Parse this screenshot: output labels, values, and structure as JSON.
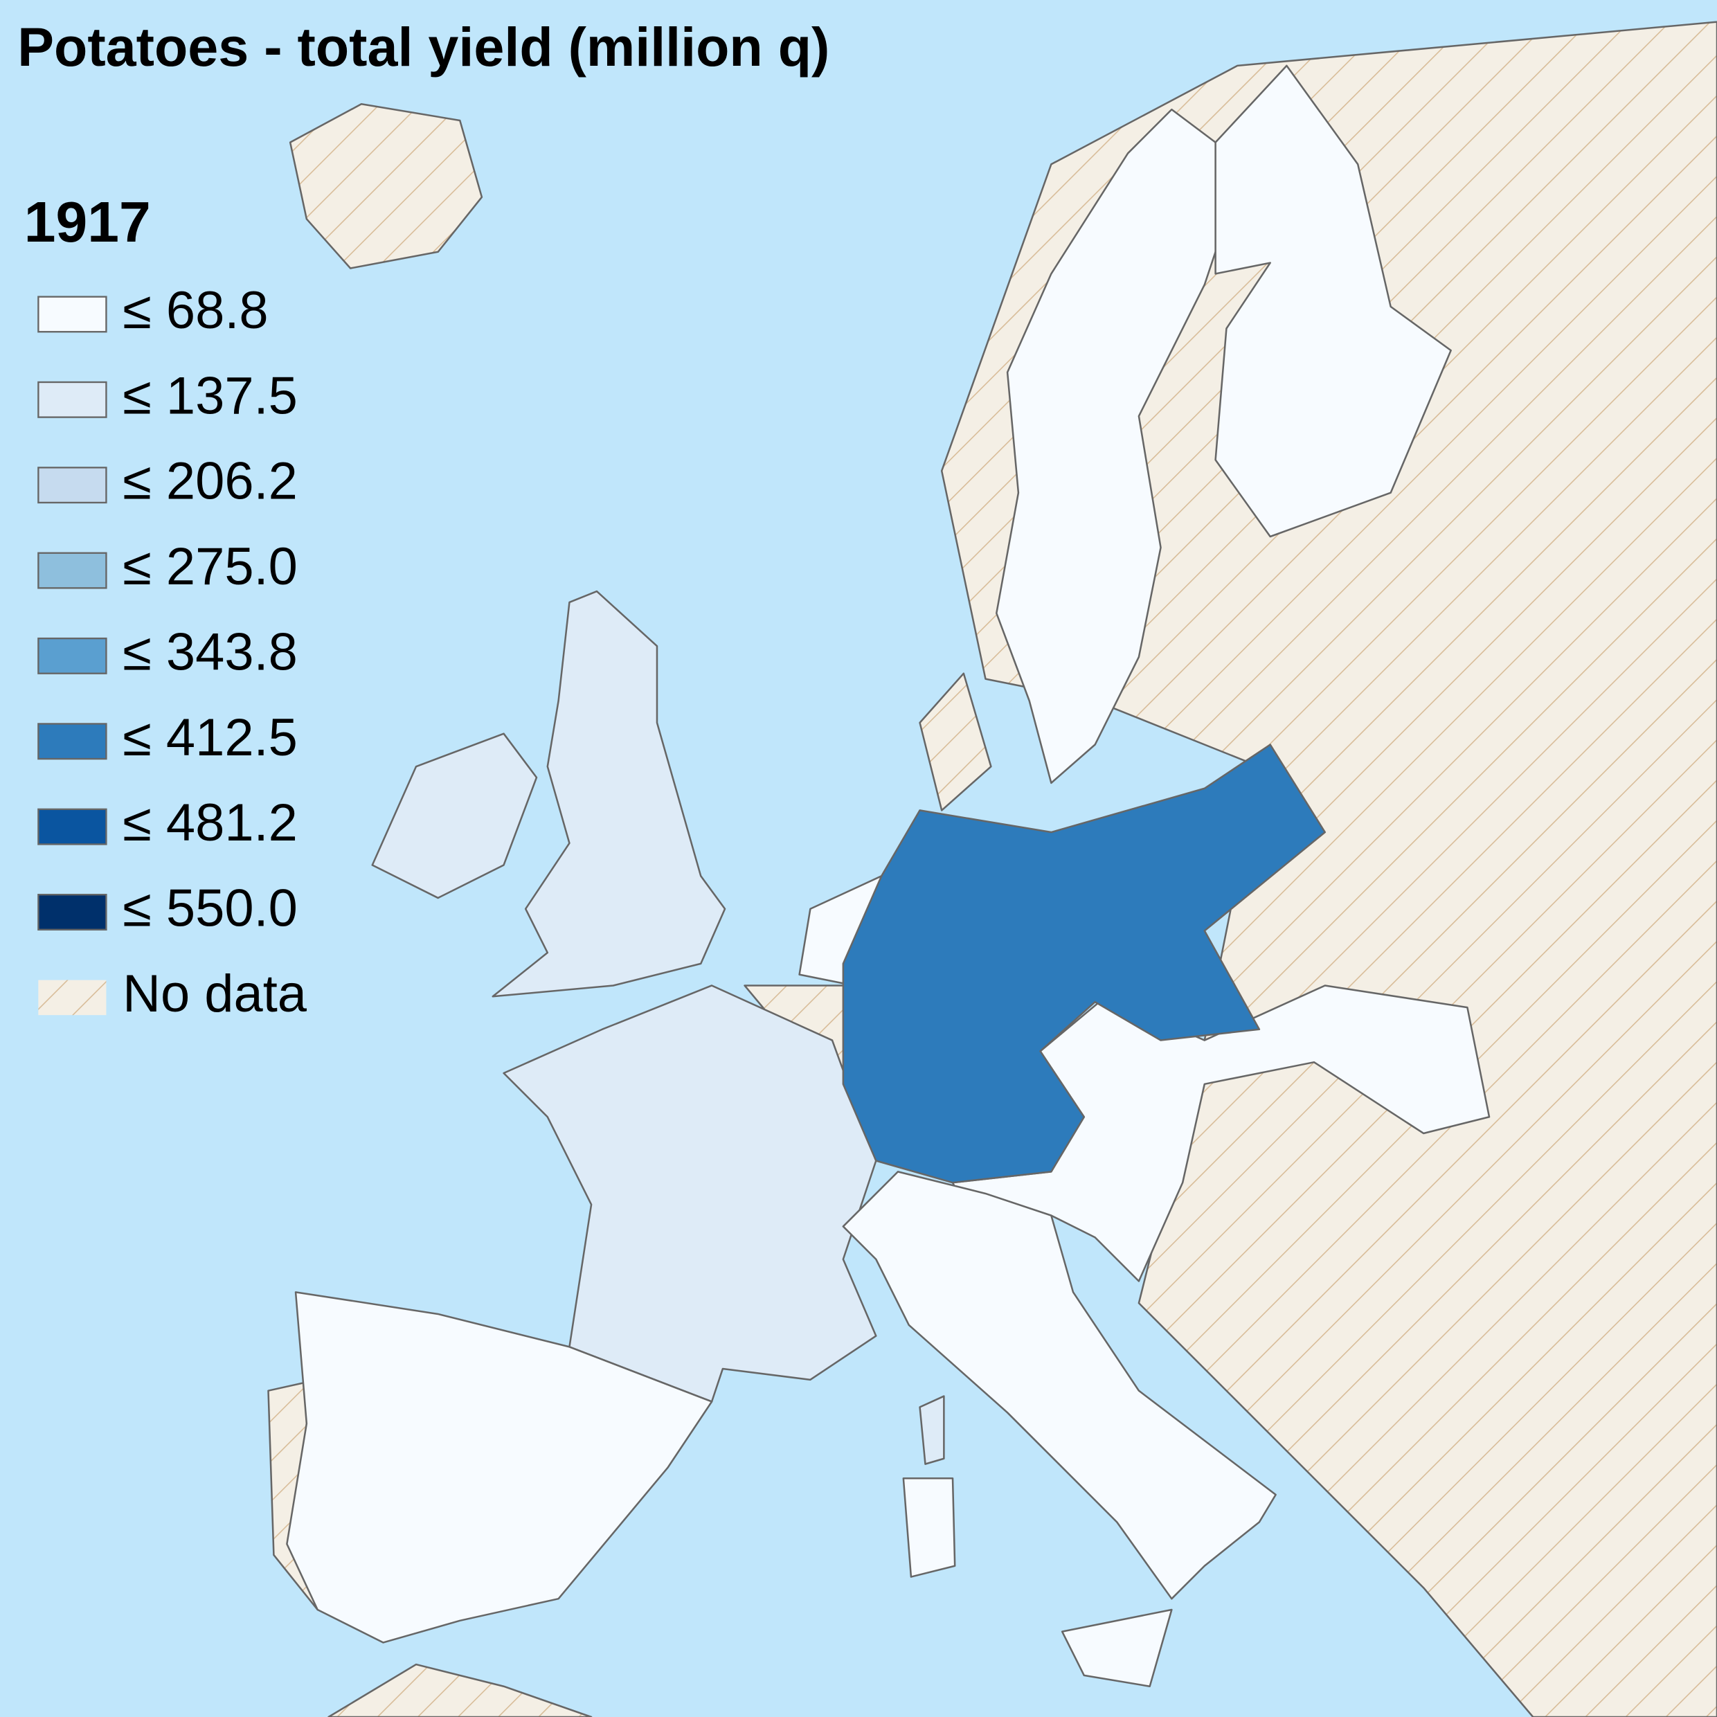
{
  "title": "Potatoes - total yield (million q)",
  "year": "1917",
  "legend": {
    "items": [
      {
        "label": "≤ 68.8",
        "color": "#f7fbff"
      },
      {
        "label": "≤ 137.5",
        "color": "#deebf7"
      },
      {
        "label": "≤ 206.2",
        "color": "#c6dbef"
      },
      {
        "label": "≤ 275.0",
        "color": "#8ebfdd"
      },
      {
        "label": "≤ 343.8",
        "color": "#5a9fd0"
      },
      {
        "label": "≤ 412.5",
        "color": "#2d7bbb"
      },
      {
        "label": "≤ 481.2",
        "color": "#0a55a0"
      },
      {
        "label": "≤ 550.0",
        "color": "#00306b"
      },
      {
        "label": "No data",
        "color": "#f4efe5"
      }
    ]
  }
}
